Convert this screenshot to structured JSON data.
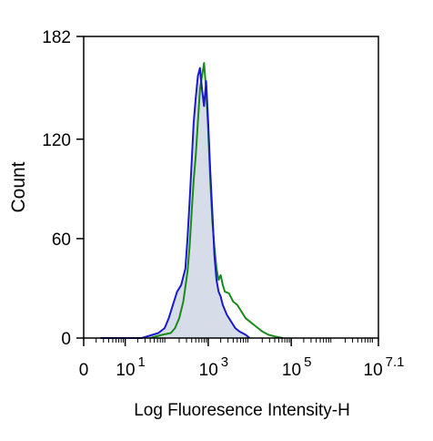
{
  "chart_data": {
    "type": "area",
    "title": "",
    "xlabel": "Log Fluoresence Intensity-H",
    "ylabel": "Count",
    "x_scale": "log10",
    "xlim": [
      0,
      7.1
    ],
    "ylim": [
      0,
      182
    ],
    "grid": false,
    "legend": "none",
    "y_ticks": [
      {
        "value": 0,
        "label": "0"
      },
      {
        "value": 60,
        "label": "60"
      },
      {
        "value": 120,
        "label": "120"
      },
      {
        "value": 182,
        "label": "182"
      }
    ],
    "x_ticks": [
      {
        "value": 0,
        "base": "0",
        "exp": ""
      },
      {
        "value": 1,
        "base": "10",
        "exp": "1"
      },
      {
        "value": 3,
        "base": "10",
        "exp": "3"
      },
      {
        "value": 5,
        "base": "10",
        "exp": "5"
      },
      {
        "value": 7.1,
        "base": "10",
        "exp": "7.1"
      }
    ],
    "series": [
      {
        "color": "#1a8a1a",
        "style": "line",
        "x": [
          1.6,
          1.9,
          2.1,
          2.2,
          2.3,
          2.4,
          2.5,
          2.55,
          2.6,
          2.65,
          2.7,
          2.75,
          2.8,
          2.85,
          2.9,
          2.95,
          3.0,
          3.05,
          3.1,
          3.15,
          3.2,
          3.25,
          3.3,
          3.35,
          3.4,
          3.5,
          3.6,
          3.7,
          3.8,
          3.9,
          4.0,
          4.1,
          4.2,
          4.3,
          4.45,
          4.6,
          4.8
        ],
        "y": [
          0,
          2,
          3,
          6,
          12,
          22,
          40,
          55,
          75,
          95,
          110,
          130,
          150,
          158,
          166,
          150,
          125,
          95,
          70,
          55,
          42,
          35,
          38,
          32,
          28,
          27,
          22,
          20,
          16,
          12,
          10,
          8,
          6,
          4,
          2,
          1,
          0
        ]
      },
      {
        "color": "#1a1acc",
        "style": "line",
        "fill": "#d7dde8",
        "x": [
          0.4,
          1.4,
          1.8,
          1.95,
          2.05,
          2.15,
          2.25,
          2.35,
          2.45,
          2.5,
          2.55,
          2.6,
          2.65,
          2.7,
          2.75,
          2.8,
          2.85,
          2.9,
          2.95,
          3.0,
          3.05,
          3.1,
          3.15,
          3.2,
          3.25,
          3.3,
          3.35,
          3.45,
          3.55,
          3.65,
          3.75,
          3.9,
          4.0
        ],
        "y": [
          0,
          0,
          3,
          6,
          12,
          20,
          28,
          32,
          42,
          60,
          82,
          105,
          130,
          145,
          158,
          163,
          150,
          140,
          155,
          130,
          100,
          75,
          50,
          35,
          28,
          25,
          20,
          14,
          10,
          6,
          4,
          2,
          0
        ]
      }
    ]
  }
}
